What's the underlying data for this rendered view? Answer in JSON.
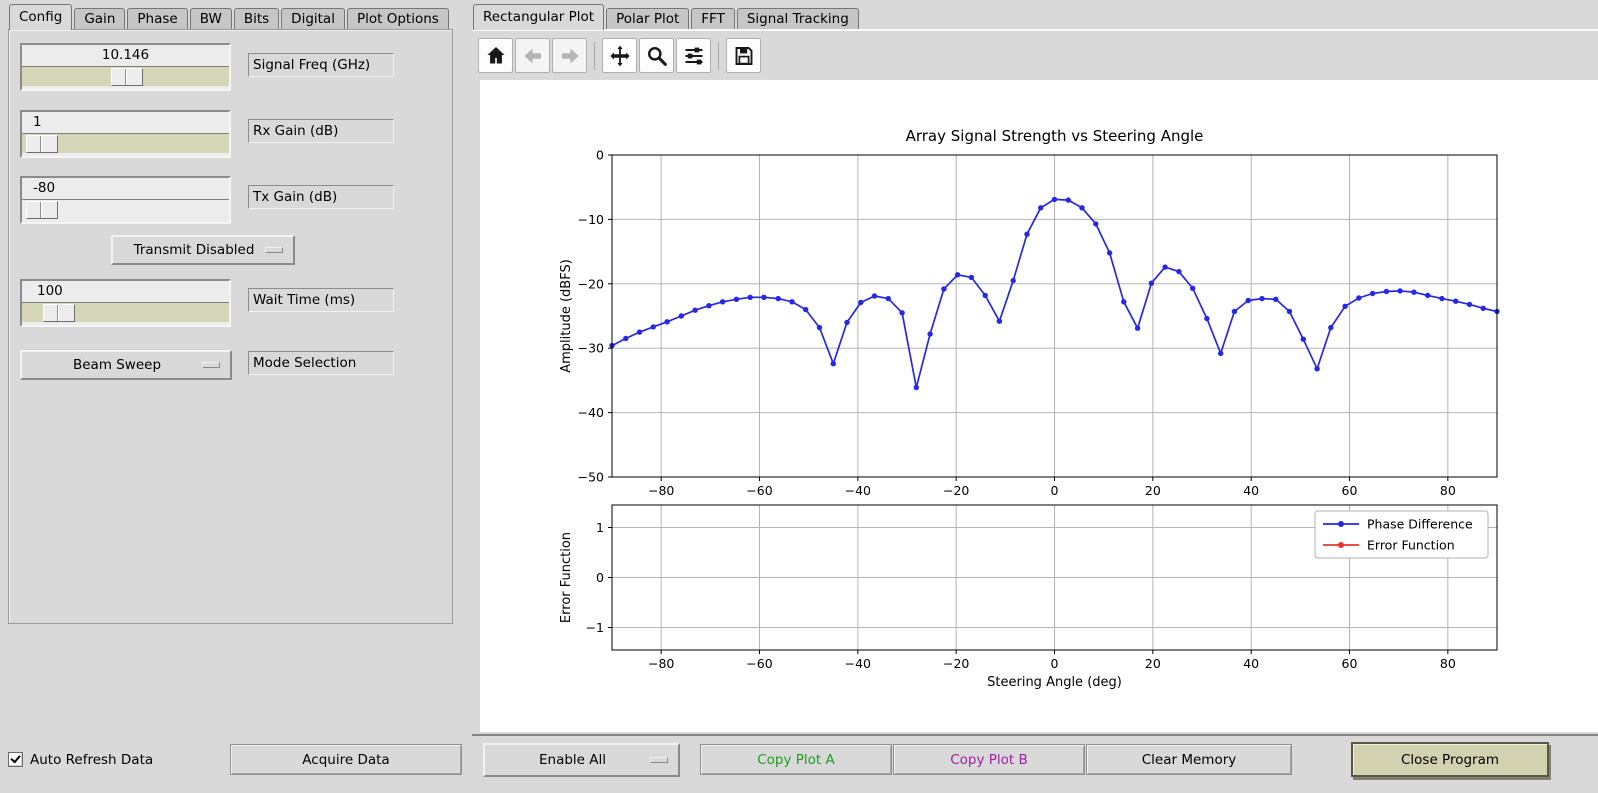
{
  "left_notebook": {
    "active_tab": "Config",
    "tabs": [
      {
        "label": "Config"
      },
      {
        "label": "Gain"
      },
      {
        "label": "Phase"
      },
      {
        "label": "BW"
      },
      {
        "label": "Bits"
      },
      {
        "label": "Digital"
      },
      {
        "label": "Plot Options"
      }
    ]
  },
  "config_panel": {
    "signal_freq": {
      "value": "10.146",
      "label": "Signal Freq (GHz)"
    },
    "rx_gain": {
      "value": "1",
      "label": "Rx Gain (dB)"
    },
    "tx_gain": {
      "value": "-80",
      "label": "Tx Gain (dB)"
    },
    "transmit_mode": {
      "value": "Transmit Disabled"
    },
    "wait_time": {
      "value": "100",
      "label": "Wait Time (ms)"
    },
    "mode_selection": {
      "value": "Beam Sweep",
      "label": "Mode Selection"
    }
  },
  "right_notebook": {
    "active_tab": "Rectangular Plot",
    "tabs": [
      {
        "label": "Rectangular Plot"
      },
      {
        "label": "Polar Plot"
      },
      {
        "label": "FFT"
      },
      {
        "label": "Signal Tracking"
      }
    ]
  },
  "toolbar": {
    "buttons": [
      {
        "name": "home"
      },
      {
        "name": "back",
        "disabled": true
      },
      {
        "name": "forward",
        "disabled": true
      },
      {
        "name": "pan"
      },
      {
        "name": "zoom"
      },
      {
        "name": "configure-subplots"
      },
      {
        "name": "save"
      }
    ]
  },
  "chart_data": {
    "type": "line",
    "title": "Array Signal Strength vs Steering Angle",
    "xlabel": "Steering Angle (deg)",
    "axes": [
      {
        "ylabel": "Amplitude (dBFS)",
        "xlim": [
          -90,
          90
        ],
        "ylim": [
          -50,
          0
        ],
        "xticks": [
          -80,
          -60,
          -40,
          -20,
          0,
          20,
          40,
          60,
          80
        ],
        "yticks": [
          0,
          -10,
          -20,
          -30,
          -40,
          -50
        ],
        "grid": true,
        "series": [
          {
            "name": "Phase Difference",
            "color": "#2727e8",
            "marker": "o",
            "points": [
              [
                -90.0,
                -29.6
              ],
              [
                -87.2,
                -28.5
              ],
              [
                -84.4,
                -27.5
              ],
              [
                -81.6,
                -26.7
              ],
              [
                -78.8,
                -25.9
              ],
              [
                -75.9,
                -25.0
              ],
              [
                -73.1,
                -24.1
              ],
              [
                -70.3,
                -23.4
              ],
              [
                -67.5,
                -22.8
              ],
              [
                -64.7,
                -22.4
              ],
              [
                -61.9,
                -22.1
              ],
              [
                -59.1,
                -22.1
              ],
              [
                -56.2,
                -22.3
              ],
              [
                -53.4,
                -22.8
              ],
              [
                -50.6,
                -24.0
              ],
              [
                -47.8,
                -26.8
              ],
              [
                -45.0,
                -32.4
              ],
              [
                -42.2,
                -26.0
              ],
              [
                -39.4,
                -22.9
              ],
              [
                -36.6,
                -21.9
              ],
              [
                -33.8,
                -22.3
              ],
              [
                -31.0,
                -24.5
              ],
              [
                -28.1,
                -36.1
              ],
              [
                -25.3,
                -27.8
              ],
              [
                -22.5,
                -20.8
              ],
              [
                -19.7,
                -18.6
              ],
              [
                -16.9,
                -19.0
              ],
              [
                -14.1,
                -21.8
              ],
              [
                -11.2,
                -25.8
              ],
              [
                -8.4,
                -19.5
              ],
              [
                -5.6,
                -12.3
              ],
              [
                -2.8,
                -8.2
              ],
              [
                0.0,
                -6.9
              ],
              [
                2.8,
                -7.0
              ],
              [
                5.6,
                -8.2
              ],
              [
                8.4,
                -10.7
              ],
              [
                11.2,
                -15.2
              ],
              [
                14.1,
                -22.8
              ],
              [
                16.9,
                -26.9
              ],
              [
                19.7,
                -19.9
              ],
              [
                22.5,
                -17.4
              ],
              [
                25.3,
                -18.1
              ],
              [
                28.1,
                -20.7
              ],
              [
                31.0,
                -25.4
              ],
              [
                33.8,
                -30.8
              ],
              [
                36.6,
                -24.3
              ],
              [
                39.4,
                -22.6
              ],
              [
                42.2,
                -22.3
              ],
              [
                45.0,
                -22.4
              ],
              [
                47.8,
                -24.3
              ],
              [
                50.6,
                -28.6
              ],
              [
                53.4,
                -33.2
              ],
              [
                56.2,
                -26.8
              ],
              [
                59.1,
                -23.5
              ],
              [
                61.9,
                -22.2
              ],
              [
                64.7,
                -21.5
              ],
              [
                67.5,
                -21.2
              ],
              [
                70.3,
                -21.1
              ],
              [
                73.1,
                -21.3
              ],
              [
                75.9,
                -21.8
              ],
              [
                78.8,
                -22.3
              ],
              [
                81.6,
                -22.7
              ],
              [
                84.4,
                -23.2
              ],
              [
                87.2,
                -23.8
              ],
              [
                90.0,
                -24.3
              ]
            ]
          }
        ]
      },
      {
        "ylabel": "Error Function",
        "xlim": [
          -90,
          90
        ],
        "ylim": [
          -1.45,
          1.45
        ],
        "xticks": [
          -80,
          -60,
          -40,
          -20,
          0,
          20,
          40,
          60,
          80
        ],
        "yticks": [
          1,
          0,
          -1
        ],
        "grid": true,
        "series": [],
        "legend": {
          "location": "upper right",
          "entries": [
            {
              "label": "Phase Difference",
              "color": "#2727e8"
            },
            {
              "label": "Error Function",
              "color": "#ee3333"
            }
          ]
        }
      }
    ]
  },
  "bottom_bar": {
    "auto_refresh": {
      "label": "Auto Refresh Data",
      "checked": true
    },
    "acquire": "Acquire Data",
    "enable_all": "Enable All",
    "copy_a": {
      "label": "Copy Plot A",
      "color": "#1e9e1e"
    },
    "copy_b": {
      "label": "Copy Plot B",
      "color": "#a020a0"
    },
    "clear": "Clear Memory",
    "close": "Close Program"
  },
  "colors": {
    "window_bg": "#d9d9d9",
    "slider_trough": "#d5d5b8",
    "figure_bg": "#ffffff",
    "grid": "#b5b5b5",
    "curve_blue": "#2727e8",
    "curve_red": "#ee3333"
  }
}
